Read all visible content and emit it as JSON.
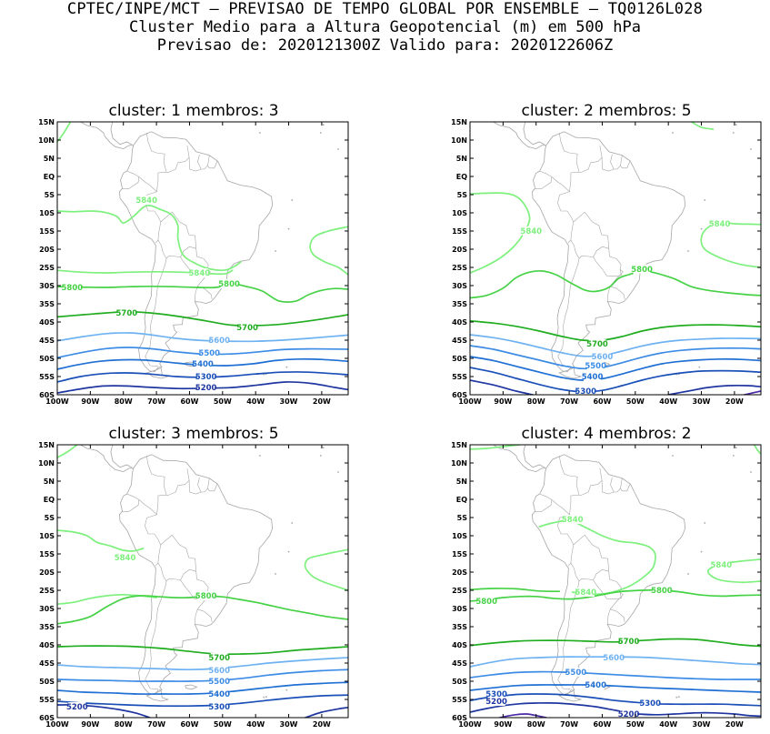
{
  "header": {
    "line1": "CPTEC/INPE/MCT — PREVISAO DE TEMPO GLOBAL POR ENSEMBLE — TQ0126L028",
    "line2": "Cluster Medio para a Altura Geopotencial (m) em 500 hPa",
    "line3": "Previsao de: 2020121300Z    Valido para: 2020122606Z"
  },
  "axes": {
    "lat_labels": [
      "15N",
      "10N",
      "5N",
      "EQ",
      "5S",
      "10S",
      "15S",
      "20S",
      "25S",
      "30S",
      "35S",
      "40S",
      "45S",
      "50S",
      "55S",
      "60S"
    ],
    "lon_labels": [
      "100W",
      "90W",
      "80W",
      "70W",
      "60W",
      "50W",
      "40W",
      "30W",
      "20W"
    ]
  },
  "colors": {
    "c5840": "#7df07d",
    "c5800": "#46d246",
    "c5700": "#1fad1f",
    "c5600": "#6fb2f2",
    "c5500": "#3c8ce6",
    "c5400": "#1f6fd4",
    "c5300": "#1a4fb8",
    "c5200": "#1f36a0",
    "c5100": "#4b2aa8",
    "coast": "#a6a6a6"
  },
  "panels": [
    {
      "title": "cluster:  1   membros:  3",
      "labels": [
        {
          "text": "5840",
          "lon": -73,
          "lat": -6.5,
          "level": "5840"
        },
        {
          "text": "5840",
          "lon": -57,
          "lat": -26.5,
          "level": "5840"
        },
        {
          "text": "5800",
          "lon": -95.5,
          "lat": -30.5,
          "level": "5800"
        },
        {
          "text": "5800",
          "lon": -48,
          "lat": -29.5,
          "level": "5800"
        },
        {
          "text": "5700",
          "lon": -79,
          "lat": -37.5,
          "level": "5700"
        },
        {
          "text": "5700",
          "lon": -42.5,
          "lat": -41.5,
          "level": "5700"
        },
        {
          "text": "5600",
          "lon": -51,
          "lat": -45,
          "level": "5600"
        },
        {
          "text": "5500",
          "lon": -54,
          "lat": -48.5,
          "level": "5500"
        },
        {
          "text": "5400",
          "lon": -56,
          "lat": -51.5,
          "level": "5400"
        },
        {
          "text": "5300",
          "lon": -55,
          "lat": -55,
          "level": "5300"
        },
        {
          "text": "5200",
          "lon": -55,
          "lat": -58,
          "level": "5200"
        }
      ]
    },
    {
      "title": "cluster:  2   membros:  5",
      "labels": [
        {
          "text": "5840",
          "lon": -81.5,
          "lat": -15,
          "level": "5840"
        },
        {
          "text": "5840",
          "lon": -24.5,
          "lat": -13,
          "level": "5840"
        },
        {
          "text": "5800",
          "lon": -48,
          "lat": -25.5,
          "level": "5800"
        },
        {
          "text": "5700",
          "lon": -61.5,
          "lat": -46,
          "level": "5700"
        },
        {
          "text": "5600",
          "lon": -60,
          "lat": -49.5,
          "level": "5600"
        },
        {
          "text": "5500",
          "lon": -62,
          "lat": -52,
          "level": "5500"
        },
        {
          "text": "5400",
          "lon": -63,
          "lat": -55,
          "level": "5400"
        },
        {
          "text": "5300",
          "lon": -65,
          "lat": -59,
          "level": "5300"
        }
      ]
    },
    {
      "title": "cluster:  3   membros:  5",
      "labels": [
        {
          "text": "5840",
          "lon": -79.5,
          "lat": -16,
          "level": "5840"
        },
        {
          "text": "5800",
          "lon": -55,
          "lat": -26.5,
          "level": "5800"
        },
        {
          "text": "5700",
          "lon": -51,
          "lat": -43.5,
          "level": "5700"
        },
        {
          "text": "5600",
          "lon": -51,
          "lat": -47,
          "level": "5600"
        },
        {
          "text": "5500",
          "lon": -51,
          "lat": -50,
          "level": "5500"
        },
        {
          "text": "5400",
          "lon": -51,
          "lat": -53.5,
          "level": "5400"
        },
        {
          "text": "5300",
          "lon": -51,
          "lat": -57,
          "level": "5300"
        },
        {
          "text": "5200",
          "lon": -94,
          "lat": -57,
          "level": "5200"
        }
      ]
    },
    {
      "title": "cluster:  4   membros:  2",
      "labels": [
        {
          "text": "5840",
          "lon": -69,
          "lat": -5.5,
          "level": "5840"
        },
        {
          "text": "5840",
          "lon": -65,
          "lat": -25.5,
          "level": "5840"
        },
        {
          "text": "5840",
          "lon": -24,
          "lat": -18,
          "level": "5840"
        },
        {
          "text": "5800",
          "lon": -95,
          "lat": -28,
          "level": "5800"
        },
        {
          "text": "5800",
          "lon": -42,
          "lat": -25,
          "level": "5800"
        },
        {
          "text": "5700",
          "lon": -52,
          "lat": -39,
          "level": "5700"
        },
        {
          "text": "5600",
          "lon": -56.5,
          "lat": -43.5,
          "level": "5600"
        },
        {
          "text": "5500",
          "lon": -68,
          "lat": -47.5,
          "level": "5500"
        },
        {
          "text": "5400",
          "lon": -62,
          "lat": -51,
          "level": "5400"
        },
        {
          "text": "5300",
          "lon": -92,
          "lat": -53.5,
          "level": "5300"
        },
        {
          "text": "5300",
          "lon": -45.5,
          "lat": -56,
          "level": "5300"
        },
        {
          "text": "5200",
          "lon": -92,
          "lat": -55.5,
          "level": "5200"
        },
        {
          "text": "5200",
          "lon": -52,
          "lat": -59,
          "level": "5200"
        }
      ]
    }
  ]
}
